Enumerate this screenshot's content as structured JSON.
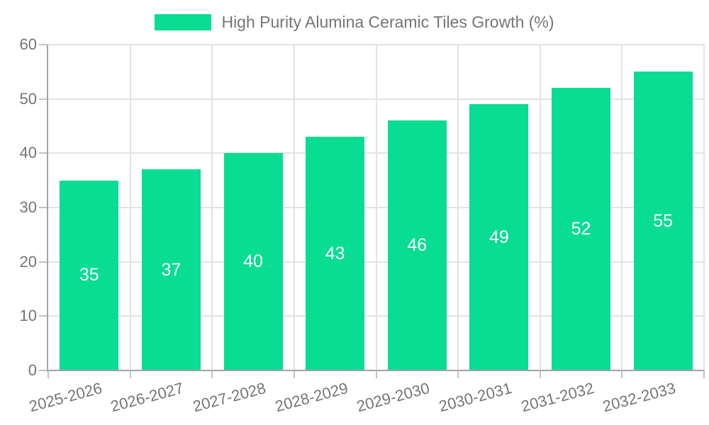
{
  "legend": {
    "label": "High Purity Alumina Ceramic Tiles Growth (%)"
  },
  "chart_data": {
    "type": "bar",
    "title": "High Purity Alumina Ceramic Tiles Growth (%)",
    "categories": [
      "2025-2026",
      "2026-2027",
      "2027-2028",
      "2028-2029",
      "2029-2030",
      "2030-2031",
      "2031-2032",
      "2032-2033"
    ],
    "values": [
      35,
      37,
      40,
      43,
      46,
      49,
      52,
      55
    ],
    "xlabel": "",
    "ylabel": "",
    "ylim": [
      0,
      60
    ],
    "yticks": [
      0,
      10,
      20,
      30,
      40,
      50,
      60
    ],
    "grid": true,
    "legend_position": "top-center",
    "x_tick_rotation_deg": -15,
    "value_labels": "inside-center",
    "colors": {
      "bar": "#09dc93",
      "value_label": "#ffffff",
      "axis_text": "#757575",
      "grid_line": "#e3e3e3",
      "axis_line": "#a3a3a3",
      "tick_mark": "#c2c2c2",
      "background": "#ffffff"
    }
  }
}
